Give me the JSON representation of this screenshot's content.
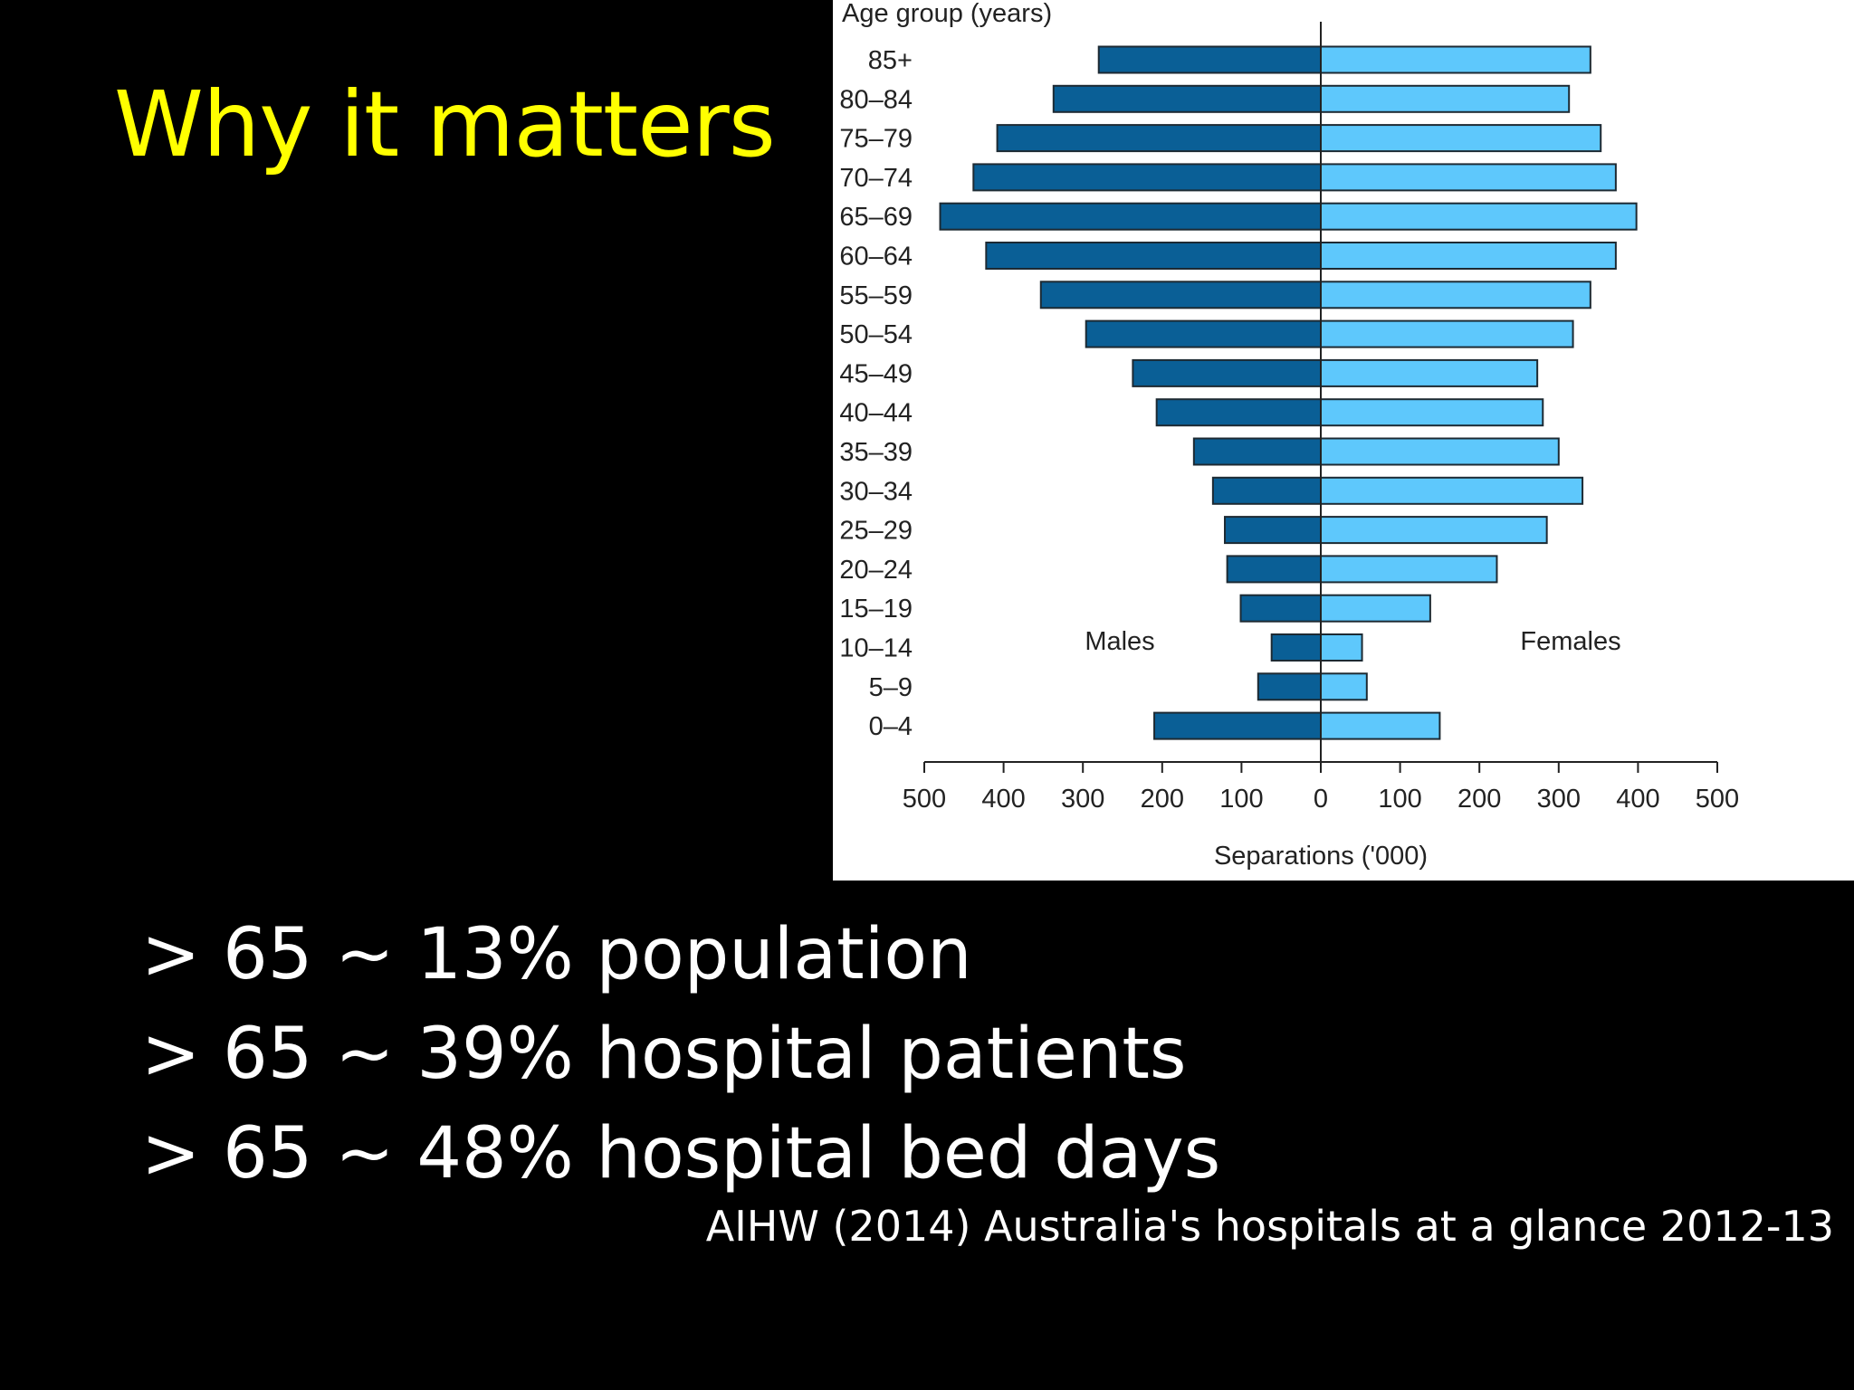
{
  "slide": {
    "title": "Why it matters",
    "bullets": [
      "> 65 ~ 13% population",
      "> 65 ~ 39% hospital patients",
      "> 65 ~ 48% hospital bed days"
    ],
    "citation": "AIHW (2014) Australia's hospitals at a glance 2012-13"
  },
  "chart_data": {
    "type": "bar",
    "orientation": "horizontal-diverging",
    "title": "",
    "ylabel": "Age group (years)",
    "xlabel": "Separations ('000)",
    "xlim": [
      -500,
      500
    ],
    "x_ticks": [
      "500",
      "400",
      "300",
      "200",
      "100",
      "0",
      "100",
      "200",
      "300",
      "400",
      "500"
    ],
    "categories": [
      "85+",
      "80–84",
      "75–79",
      "70–74",
      "65–69",
      "60–64",
      "55–59",
      "50–54",
      "45–49",
      "40–44",
      "35–39",
      "30–34",
      "25–29",
      "20–24",
      "15–19",
      "10–14",
      "5–9",
      "0–4"
    ],
    "series": [
      {
        "name": "Males",
        "color": "#0a5f96",
        "values": [
          280,
          337,
          408,
          438,
          480,
          422,
          353,
          296,
          237,
          207,
          160,
          136,
          121,
          118,
          101,
          62,
          79,
          210
        ]
      },
      {
        "name": "Females",
        "color": "#5ec8fc",
        "values": [
          340,
          313,
          353,
          372,
          398,
          372,
          340,
          318,
          273,
          280,
          300,
          330,
          285,
          222,
          138,
          52,
          58,
          150
        ]
      }
    ],
    "grid": false,
    "legend": "inline labels inside plot"
  }
}
